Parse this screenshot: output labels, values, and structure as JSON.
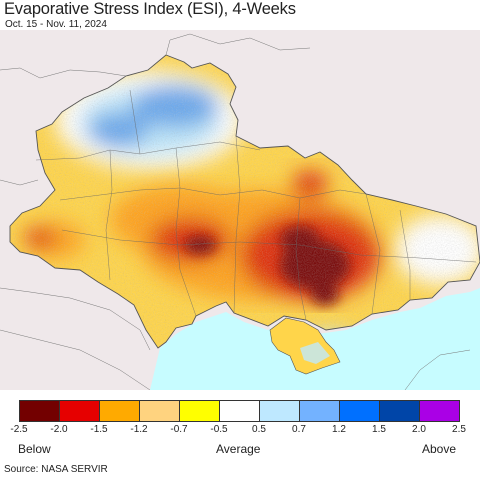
{
  "header": {
    "title": "Evaporative Stress Index (ESI), 4-Weeks",
    "date_range": "Oct. 15 - Nov. 11, 2024"
  },
  "map": {
    "region": "Ukraine",
    "colors": {
      "background": "#efe8ea",
      "sea": "#c7fcff",
      "border": "#555555",
      "neutral": "#ffffff",
      "dry_mild": "#ffd54a",
      "dry_moderate": "#ffa31a",
      "dry_strong": "#e03010",
      "dry_extreme": "#7a0b0b",
      "wet_mild": "#bfe8fb",
      "wet_moderate": "#6aa8ec",
      "wet_strong": "#1a5fd6"
    }
  },
  "legend": {
    "colors": [
      "#730000",
      "#e60000",
      "#ffaa00",
      "#ffd37f",
      "#ffff00",
      "#ffffff",
      "#bee8ff",
      "#73b2ff",
      "#0070ff",
      "#0045a8",
      "#aa00e6"
    ],
    "ticks": [
      "-2.5",
      "-2.0",
      "-1.5",
      "-1.2",
      "-0.7",
      "-0.5",
      "0.5",
      "0.7",
      "1.2",
      "1.5",
      "2.0",
      "2.5"
    ],
    "labels": {
      "below": "Below",
      "average": "Average",
      "above": "Above"
    }
  },
  "footer": {
    "source": "Source: NASA SERVIR"
  }
}
